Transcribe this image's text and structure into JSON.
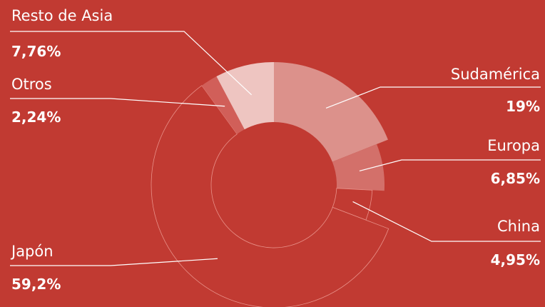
{
  "colors": {
    "background": "#c13a32",
    "outline": "#e89088",
    "leader": "#ffffff"
  },
  "chart_data": {
    "type": "pie",
    "donut": true,
    "slices": [
      {
        "label": "Sudamérica",
        "value_label": "19%",
        "value": 19.0,
        "color": "#dc918b"
      },
      {
        "label": "Europa",
        "value_label": "6,85%",
        "value": 6.85,
        "color": "#d3706a"
      },
      {
        "label": "China",
        "value_label": "4,95%",
        "value": 4.95,
        "color": "#c13a32"
      },
      {
        "label": "Japón",
        "value_label": "59,2%",
        "value": 59.2,
        "color": "#c13a32"
      },
      {
        "label": "Otros",
        "value_label": "2,24%",
        "value": 2.24,
        "color": "#d15f59"
      },
      {
        "label": "Resto de Asia",
        "value_label": "7,76%",
        "value": 7.76,
        "color": "#eec5c1"
      }
    ]
  }
}
